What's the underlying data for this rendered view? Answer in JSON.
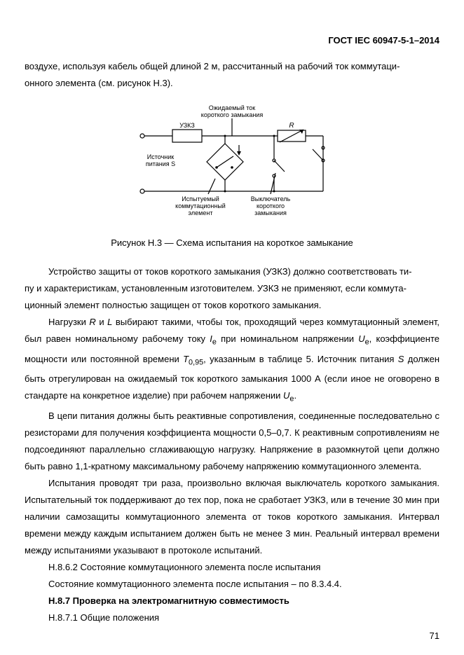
{
  "header": "ГОСТ IEC 60947-5-1–2014",
  "p1_a": "воздухе, используя кабель общей длиной 2 м, рассчитанный на рабочий ток коммутаци-",
  "p1_b": "онного элемента (см. рисунок H.3).",
  "diagram": {
    "expected_current_1": "Ожидаемый ток",
    "expected_current_2": "короткого замыкания",
    "uzkz": "УЗКЗ",
    "R": "R",
    "source_1": "Источник",
    "source_2": "питания S",
    "dut_1": "Испытуемый",
    "dut_2": "коммутационный",
    "dut_3": "элемент",
    "switch_1": "Выключатель",
    "switch_2": "короткого",
    "switch_3": "замыкания"
  },
  "fig_caption": "Рисунок H.3 — Схема испытания на короткое замыкание",
  "p2": "Устройство защиты от токов короткого замыкания (УЗКЗ) должно соответствовать ти-",
  "p2b": "пу и характеристикам, установленным изготовителем. УЗКЗ не применяют, если коммута-",
  "p2c": "ционный элемент полностью защищен от токов короткого замыкания.",
  "p3_html": "Нагрузки <i>R</i> и <i>L</i> выбирают такими, чтобы ток, проходящий через коммутационный элемент, был равен номинальному рабочему току <i>I</i><sub>e</sub> при номинальном напряжении <i>U</i><sub>e</sub>, коэффициенте мощности или постоянной времени <i>T</i><sub>0,95</sub>, указанным в таблице 5. Источник питания <i>S</i> должен быть отрегулирован на ожидаемый ток короткого замыкания 1000 А (если иное не оговорено в стандарте на конкретное изделие) при рабочем напряжении <i>U</i><sub>e</sub>.",
  "p4": "В цепи питания должны быть реактивные сопротивления, соединенные последовательно с резисторами для получения коэффициента мощности 0,5–0,7. К реактивным сопротивлениям не подсоединяют параллельно сглаживающую нагрузку. Напряжение в разомкнутой цепи должно быть равно 1,1-кратному максимальному рабочему напряжению коммутационного элемента.",
  "p5": "Испытания проводят три раза, произвольно включая выключатель короткого замыкания. Испытательный ток поддерживают до тех пор, пока не сработает УЗКЗ, или в течение 30 мин при наличии самозащиты коммутационного элемента от токов короткого замыкания. Интервал времени между каждым испытанием должен быть не менее 3 мин. Реальный интервал времени между испытаниями указывают в протоколе испытаний.",
  "h862": "H.8.6.2 Состояние коммутационного элемента после испытания",
  "h862_body": "Состояние коммутационного элемента после испытания – по 8.3.4.4.",
  "h87": "H.8.7 Проверка на электромагнитную совместимость",
  "h871": "H.8.7.1 Общие положения",
  "page_num": "71"
}
